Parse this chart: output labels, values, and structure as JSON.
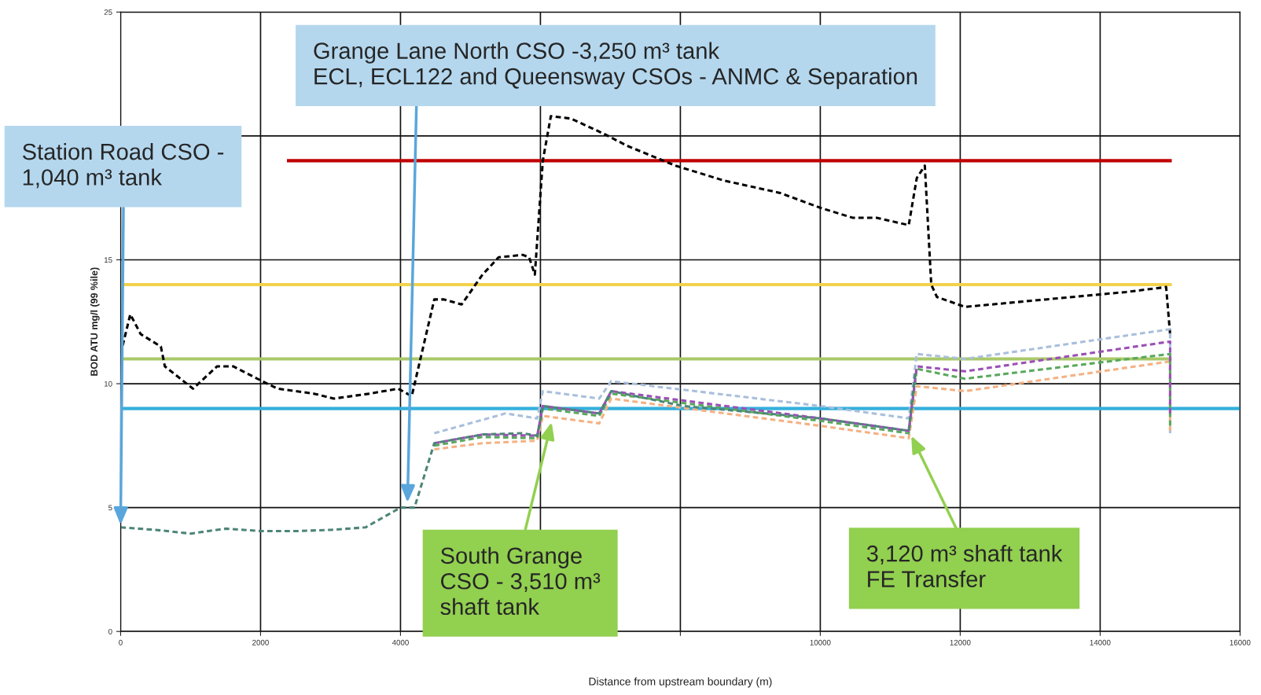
{
  "chart_data": {
    "type": "line",
    "xlabel": "Distance from upstream boundary (m)",
    "ylabel": "BOD ATU mg/l (99 %ile)",
    "xlim": [
      0,
      16000
    ],
    "ylim": [
      0,
      25
    ],
    "xticks": [
      0,
      2000,
      4000,
      {
        "value": 6000,
        "label": null
      },
      {
        "value": 8000,
        "label": null
      },
      10000,
      12000,
      14000,
      16000
    ],
    "yticks": [
      0,
      5,
      10,
      15,
      {
        "value": 20,
        "label": null
      },
      25
    ],
    "grid": true,
    "line_style": "dashed",
    "series": [
      {
        "color": "#c00000",
        "line_style": "solid",
        "x": [
          2400,
          15000
        ],
        "values": [
          19,
          19
        ]
      },
      {
        "color": "#f2d24b",
        "line_style": "solid",
        "x": [
          0,
          15000
        ],
        "values": [
          14,
          14
        ]
      },
      {
        "color": "#a9c96a",
        "line_style": "solid",
        "x": [
          0,
          15000
        ],
        "values": [
          11,
          11
        ]
      },
      {
        "color": "#33b0dc",
        "line_style": "solid",
        "x": [
          0,
          16000
        ],
        "values": [
          9,
          9
        ]
      },
      {
        "color": "#000000",
        "x": [
          0,
          138,
          287,
          575,
          632,
          1034,
          1379,
          1609,
          1954,
          2241,
          2759,
          3046,
          3563,
          3966,
          4161,
          4483,
          4621,
          4874,
          5172,
          5402,
          5747,
          5839,
          5920,
          6034,
          6149,
          6437,
          6897,
          7241,
          7931,
          8621,
          9425,
          10000,
          10460,
          10805,
          11264,
          11379,
          11494,
          11586,
          11667,
          12069,
          13218,
          14368,
          14943,
          15000
        ],
        "values": [
          11.2,
          12.8,
          12.0,
          11.5,
          10.7,
          9.8,
          10.7,
          10.7,
          10.2,
          9.8,
          9.6,
          9.4,
          9.6,
          9.8,
          9.5,
          13.4,
          13.4,
          13.2,
          14.4,
          15.1,
          15.2,
          15.1,
          14.4,
          19.0,
          20.8,
          20.7,
          20.1,
          19.6,
          18.8,
          18.2,
          17.7,
          17.1,
          16.7,
          16.7,
          16.4,
          18.3,
          18.8,
          14.0,
          13.5,
          13.1,
          13.4,
          13.7,
          13.9,
          12.0
        ]
      },
      {
        "color": "#a9bfdc",
        "x": [
          4483,
          5500,
          5954,
          6034,
          6840,
          7012,
          10000,
          11264,
          11379,
          12069,
          15000,
          15000
        ],
        "values": [
          8.0,
          8.8,
          8.6,
          9.7,
          9.4,
          10.1,
          9.1,
          8.6,
          11.2,
          11.0,
          12.2,
          8.0
        ]
      },
      {
        "color": "#f4b183",
        "x": [
          4483,
          5172,
          5954,
          6034,
          6840,
          7012,
          10000,
          11264,
          11379,
          12069,
          15000,
          15000
        ],
        "values": [
          7.35,
          7.6,
          7.7,
          8.7,
          8.4,
          9.4,
          8.3,
          7.8,
          9.9,
          9.7,
          10.9,
          8.1
        ]
      },
      {
        "color": "#59a85c",
        "x": [
          4483,
          5172,
          5954,
          6034,
          6840,
          7012,
          10000,
          11264,
          11379,
          12069,
          15000,
          15000
        ],
        "values": [
          7.5,
          7.85,
          7.8,
          9.0,
          8.7,
          9.6,
          8.5,
          8.0,
          10.6,
          10.2,
          11.2,
          8.3
        ]
      },
      {
        "color": "#9b4fb6",
        "x": [
          4483,
          5172,
          5954,
          6034,
          6840,
          7012,
          10000,
          11264,
          11379,
          12069,
          15000,
          15000
        ],
        "values": [
          7.6,
          7.95,
          7.9,
          9.1,
          8.8,
          9.7,
          8.6,
          8.1,
          10.7,
          10.5,
          11.7,
          8.8
        ]
      },
      {
        "color": "#4d8577",
        "x": [
          0,
          500,
          1000,
          1500,
          2000,
          2500,
          3000,
          3500,
          4000,
          4200,
          4483,
          5172,
          5747,
          5954,
          6034,
          6840,
          7012,
          8046,
          10000,
          11264,
          11356
        ],
        "values": [
          4.2,
          4.1,
          3.95,
          4.15,
          4.05,
          4.05,
          4.1,
          4.2,
          5.0,
          5.0,
          7.6,
          7.95,
          8.0,
          7.9,
          9.1,
          8.8,
          9.7,
          9.1,
          8.6,
          8.1,
          10.4
        ]
      }
    ],
    "annotations": [
      {
        "text": "Station Road CSO -\n1,040 m³ tank",
        "x": 0,
        "y": 4.3
      },
      {
        "text": "Grange Lane North CSO -3,250 m³ tank\nECL, ECL122 and Queensway CSOs - ANMC & Separation",
        "x": 4100,
        "y": 5.2
      },
      {
        "text": "South Grange\nCSO - 3,510 m³\nshaft tank",
        "x": 6160,
        "y": 8.45
      },
      {
        "text": "3,120 m³ shaft tank\nFE Transfer",
        "x": 11300,
        "y": 7.9
      }
    ]
  }
}
